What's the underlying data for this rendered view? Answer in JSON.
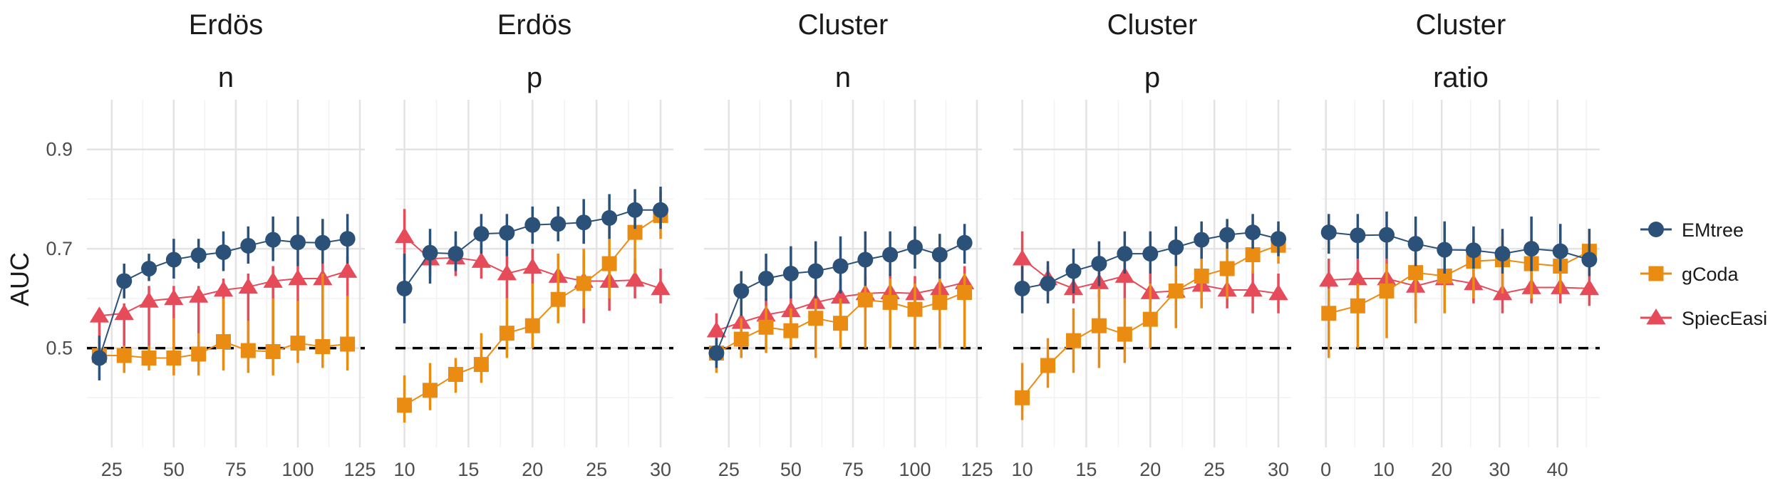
{
  "y_axis_label": "AUC",
  "legend": [
    {
      "label": "EMtree",
      "color": "#2b5179",
      "shape": "circle"
    },
    {
      "label": "gCoda",
      "color": "#eb8c12",
      "shape": "square"
    },
    {
      "label": "SpiecEasi",
      "color": "#e64b5a",
      "shape": "triangle"
    }
  ],
  "chart_data": [
    {
      "type": "line",
      "title": [
        "Erdös",
        "n"
      ],
      "xlabel": "",
      "ylabel": "AUC",
      "xlim": [
        15,
        127
      ],
      "ylim": [
        0.3,
        1.0
      ],
      "x_ticks": [
        25,
        50,
        75,
        100,
        125
      ],
      "y_ticks": [
        0.5,
        0.7,
        0.9
      ],
      "reference_line": 0.5,
      "x": [
        20,
        30,
        40,
        50,
        60,
        70,
        80,
        90,
        100,
        110,
        120
      ],
      "series": [
        {
          "name": "EMtree",
          "values": [
            0.48,
            0.635,
            0.66,
            0.678,
            0.687,
            0.693,
            0.706,
            0.718,
            0.713,
            0.712,
            0.72
          ],
          "lo": [
            0.435,
            0.6,
            0.635,
            0.64,
            0.66,
            0.655,
            0.67,
            0.675,
            0.665,
            0.67,
            0.67
          ],
          "hi": [
            0.525,
            0.67,
            0.69,
            0.72,
            0.72,
            0.735,
            0.745,
            0.765,
            0.765,
            0.76,
            0.77
          ]
        },
        {
          "name": "gCoda",
          "values": [
            0.485,
            0.485,
            0.48,
            0.48,
            0.488,
            0.513,
            0.495,
            0.493,
            0.51,
            0.503,
            0.508
          ],
          "lo": [
            0.47,
            0.45,
            0.455,
            0.445,
            0.445,
            0.455,
            0.45,
            0.445,
            0.47,
            0.46,
            0.455
          ],
          "hi": [
            0.5,
            0.505,
            0.505,
            0.56,
            0.53,
            0.6,
            0.555,
            0.6,
            0.595,
            0.65,
            0.605
          ]
        },
        {
          "name": "SpiecEasi",
          "values": [
            0.565,
            0.57,
            0.595,
            0.6,
            0.605,
            0.617,
            0.623,
            0.635,
            0.64,
            0.64,
            0.655
          ],
          "lo": [
            0.5,
            0.5,
            0.5,
            0.5,
            0.5,
            0.5,
            0.5,
            0.5,
            0.5,
            0.5,
            0.5
          ],
          "hi": [
            0.58,
            0.59,
            0.625,
            0.625,
            0.625,
            0.64,
            0.65,
            0.665,
            0.665,
            0.67,
            0.685
          ]
        }
      ]
    },
    {
      "type": "line",
      "title": [
        "Erdös",
        "p"
      ],
      "xlabel": "",
      "ylabel": "AUC",
      "xlim": [
        9.3,
        31
      ],
      "ylim": [
        0.3,
        1.0
      ],
      "x_ticks": [
        10,
        15,
        20,
        25,
        30
      ],
      "y_ticks": [
        0.5,
        0.7,
        0.9
      ],
      "reference_line": 0.5,
      "x": [
        10,
        12,
        14,
        16,
        18,
        20,
        22,
        24,
        26,
        28,
        30
      ],
      "series": [
        {
          "name": "EMtree",
          "values": [
            0.62,
            0.692,
            0.69,
            0.73,
            0.732,
            0.748,
            0.75,
            0.753,
            0.762,
            0.778,
            0.778
          ],
          "lo": [
            0.55,
            0.63,
            0.655,
            0.69,
            0.685,
            0.71,
            0.715,
            0.71,
            0.72,
            0.74,
            0.74
          ],
          "hi": [
            0.69,
            0.74,
            0.735,
            0.77,
            0.77,
            0.785,
            0.785,
            0.8,
            0.81,
            0.82,
            0.825
          ]
        },
        {
          "name": "gCoda",
          "values": [
            0.385,
            0.415,
            0.447,
            0.467,
            0.53,
            0.545,
            0.598,
            0.63,
            0.67,
            0.733,
            0.767
          ],
          "lo": [
            0.35,
            0.375,
            0.41,
            0.43,
            0.48,
            0.5,
            0.55,
            0.58,
            0.6,
            0.65,
            0.72
          ],
          "hi": [
            0.445,
            0.47,
            0.48,
            0.53,
            0.6,
            0.63,
            0.69,
            0.7,
            0.75,
            0.79,
            0.815
          ]
        },
        {
          "name": "SpiecEasi",
          "values": [
            0.725,
            0.68,
            0.682,
            0.675,
            0.65,
            0.663,
            0.645,
            0.635,
            0.635,
            0.637,
            0.62
          ],
          "lo": [
            0.65,
            0.645,
            0.645,
            0.64,
            0.6,
            0.605,
            0.595,
            0.55,
            0.575,
            0.6,
            0.59
          ],
          "hi": [
            0.78,
            0.715,
            0.715,
            0.715,
            0.695,
            0.7,
            0.69,
            0.69,
            0.68,
            0.68,
            0.66
          ]
        }
      ]
    },
    {
      "type": "line",
      "title": [
        "Cluster",
        "n"
      ],
      "xlabel": "",
      "ylabel": "AUC",
      "xlim": [
        15,
        127
      ],
      "ylim": [
        0.3,
        1.0
      ],
      "x_ticks": [
        25,
        50,
        75,
        100,
        125
      ],
      "y_ticks": [
        0.5,
        0.7,
        0.9
      ],
      "reference_line": 0.5,
      "x": [
        20,
        30,
        40,
        50,
        60,
        70,
        80,
        90,
        100,
        110,
        120
      ],
      "series": [
        {
          "name": "EMtree",
          "values": [
            0.49,
            0.615,
            0.64,
            0.65,
            0.655,
            0.665,
            0.678,
            0.688,
            0.703,
            0.688,
            0.712
          ],
          "lo": [
            0.46,
            0.565,
            0.595,
            0.6,
            0.6,
            0.61,
            0.625,
            0.645,
            0.66,
            0.64,
            0.67
          ],
          "hi": [
            0.52,
            0.655,
            0.69,
            0.705,
            0.715,
            0.725,
            0.735,
            0.735,
            0.745,
            0.73,
            0.75
          ]
        },
        {
          "name": "gCoda",
          "values": [
            0.49,
            0.518,
            0.542,
            0.535,
            0.56,
            0.55,
            0.597,
            0.592,
            0.578,
            0.592,
            0.612
          ],
          "lo": [
            0.45,
            0.48,
            0.49,
            0.5,
            0.48,
            0.5,
            0.5,
            0.5,
            0.5,
            0.5,
            0.5
          ],
          "hi": [
            0.51,
            0.56,
            0.585,
            0.58,
            0.6,
            0.6,
            0.645,
            0.64,
            0.63,
            0.64,
            0.65
          ]
        },
        {
          "name": "SpiecEasi",
          "values": [
            0.535,
            0.552,
            0.567,
            0.576,
            0.592,
            0.603,
            0.61,
            0.612,
            0.61,
            0.62,
            0.632
          ],
          "lo": [
            0.5,
            0.5,
            0.53,
            0.54,
            0.55,
            0.56,
            0.575,
            0.575,
            0.575,
            0.58,
            0.6
          ],
          "hi": [
            0.57,
            0.58,
            0.6,
            0.61,
            0.625,
            0.64,
            0.645,
            0.65,
            0.645,
            0.655,
            0.665
          ]
        }
      ]
    },
    {
      "type": "line",
      "title": [
        "Cluster",
        "p"
      ],
      "xlabel": "",
      "ylabel": "AUC",
      "xlim": [
        9.3,
        31
      ],
      "ylim": [
        0.3,
        1.0
      ],
      "x_ticks": [
        10,
        15,
        20,
        25,
        30
      ],
      "y_ticks": [
        0.5,
        0.7,
        0.9
      ],
      "reference_line": 0.5,
      "x": [
        10,
        12,
        14,
        16,
        18,
        20,
        22,
        24,
        26,
        28,
        30
      ],
      "series": [
        {
          "name": "EMtree",
          "values": [
            0.62,
            0.63,
            0.655,
            0.67,
            0.69,
            0.69,
            0.703,
            0.718,
            0.728,
            0.733,
            0.72
          ],
          "lo": [
            0.57,
            0.59,
            0.61,
            0.625,
            0.65,
            0.65,
            0.665,
            0.68,
            0.7,
            0.7,
            0.685
          ],
          "hi": [
            0.665,
            0.675,
            0.7,
            0.715,
            0.735,
            0.735,
            0.745,
            0.755,
            0.76,
            0.77,
            0.755
          ]
        },
        {
          "name": "gCoda",
          "values": [
            0.4,
            0.465,
            0.515,
            0.545,
            0.528,
            0.558,
            0.615,
            0.645,
            0.66,
            0.688,
            0.707
          ],
          "lo": [
            0.355,
            0.42,
            0.45,
            0.46,
            0.47,
            0.5,
            0.54,
            0.58,
            0.6,
            0.65,
            0.67
          ],
          "hi": [
            0.47,
            0.52,
            0.58,
            0.62,
            0.6,
            0.63,
            0.665,
            0.7,
            0.72,
            0.73,
            0.745
          ]
        },
        {
          "name": "SpiecEasi",
          "values": [
            0.68,
            0.64,
            0.62,
            0.632,
            0.645,
            0.612,
            0.615,
            0.627,
            0.617,
            0.617,
            0.61
          ],
          "lo": [
            0.63,
            0.61,
            0.59,
            0.6,
            0.6,
            0.58,
            0.58,
            0.59,
            0.58,
            0.57,
            0.57
          ],
          "hi": [
            0.735,
            0.665,
            0.66,
            0.665,
            0.68,
            0.65,
            0.65,
            0.66,
            0.66,
            0.655,
            0.65
          ]
        }
      ]
    },
    {
      "type": "line",
      "title": [
        "Cluster",
        "ratio"
      ],
      "xlabel": "",
      "ylabel": "AUC",
      "xlim": [
        -0.7,
        47.3
      ],
      "ylim": [
        0.3,
        1.0
      ],
      "x_ticks": [
        0,
        10,
        20,
        30,
        40
      ],
      "y_ticks": [
        0.5,
        0.7,
        0.9
      ],
      "reference_line": 0.5,
      "x": [
        0.5,
        5.5,
        10.5,
        15.5,
        20.5,
        25.5,
        30.5,
        35.5,
        40.5,
        45.5
      ],
      "series": [
        {
          "name": "EMtree",
          "values": [
            0.733,
            0.727,
            0.728,
            0.71,
            0.698,
            0.697,
            0.69,
            0.7,
            0.695,
            0.678
          ],
          "lo": [
            0.69,
            0.68,
            0.68,
            0.665,
            0.65,
            0.66,
            0.65,
            0.655,
            0.655,
            0.645
          ],
          "hi": [
            0.77,
            0.77,
            0.775,
            0.765,
            0.755,
            0.745,
            0.74,
            0.765,
            0.75,
            0.74
          ]
        },
        {
          "name": "gCoda",
          "values": [
            0.57,
            0.585,
            0.615,
            0.652,
            0.645,
            0.675,
            0.678,
            0.67,
            0.665,
            0.695
          ],
          "lo": [
            0.48,
            0.5,
            0.52,
            0.55,
            0.57,
            0.6,
            0.61,
            0.6,
            0.61,
            0.645
          ],
          "hi": [
            0.62,
            0.63,
            0.67,
            0.7,
            0.71,
            0.72,
            0.725,
            0.72,
            0.72,
            0.74
          ]
        },
        {
          "name": "SpiecEasi",
          "values": [
            0.637,
            0.64,
            0.64,
            0.625,
            0.64,
            0.63,
            0.61,
            0.622,
            0.622,
            0.62
          ],
          "lo": [
            0.6,
            0.6,
            0.6,
            0.58,
            0.6,
            0.59,
            0.57,
            0.59,
            0.59,
            0.585
          ],
          "hi": [
            0.68,
            0.68,
            0.68,
            0.67,
            0.68,
            0.67,
            0.65,
            0.66,
            0.66,
            0.655
          ]
        }
      ]
    }
  ]
}
